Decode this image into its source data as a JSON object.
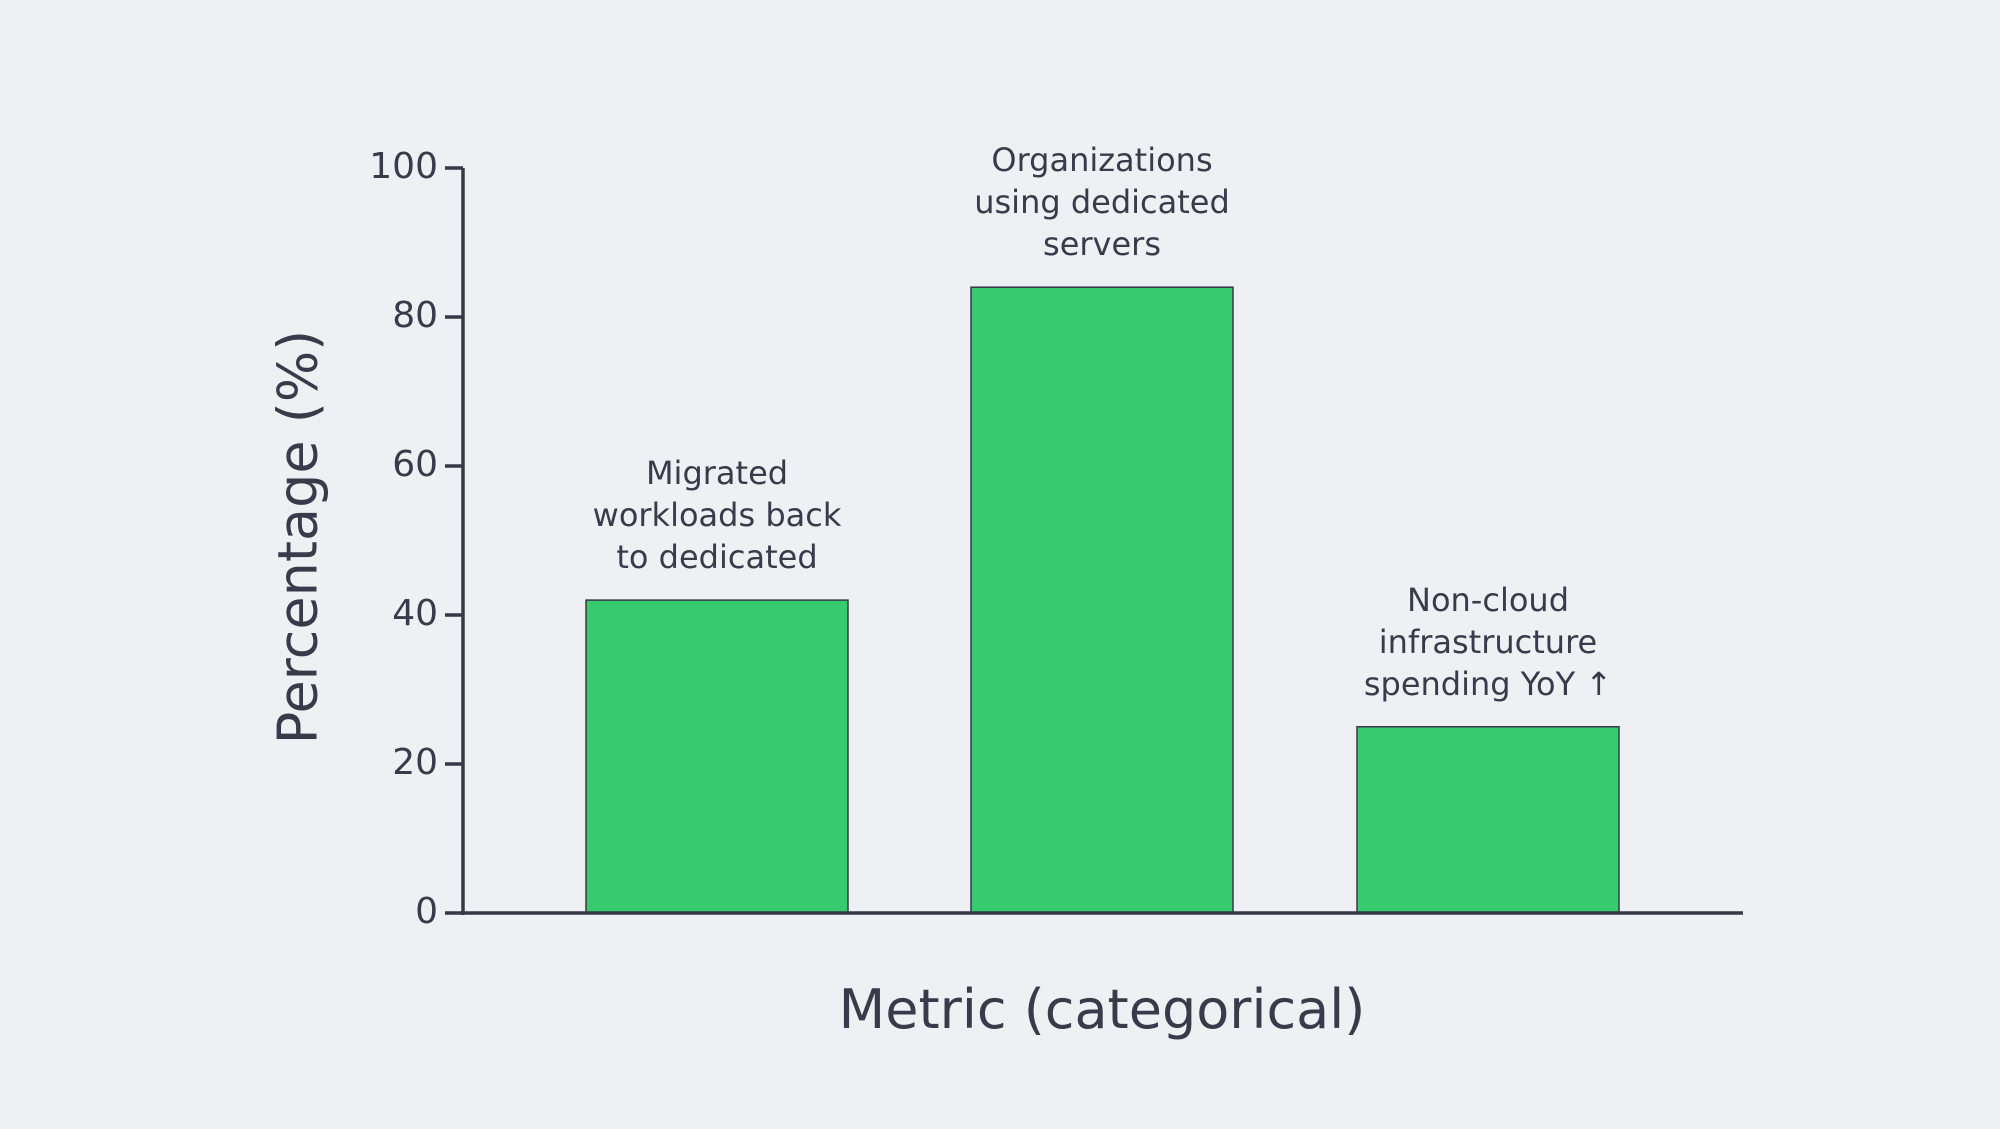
{
  "chart_data": {
    "type": "bar",
    "title": "",
    "xlabel": "Metric (categorical)",
    "ylabel": "Percentage (%)",
    "ylim": [
      0,
      100
    ],
    "yticks": [
      0,
      20,
      40,
      60,
      80,
      100
    ],
    "grid": false,
    "legend": null,
    "categories": [
      "Migrated workloads back to dedicated",
      "Organizations using dedicated servers",
      "Non-cloud infrastructure spending YoY ↑"
    ],
    "values": [
      42,
      84,
      25
    ],
    "annotations": [
      [
        "Migrated",
        "workloads back",
        "to dedicated"
      ],
      [
        "Organizations",
        "using dedicated",
        "servers"
      ],
      [
        "Non-cloud",
        "infrastructure",
        "spending YoY ↑"
      ]
    ],
    "colors": {
      "bar": "#37cb70",
      "bar_edge": "#363846",
      "axis": "#363846",
      "text": "#3a3b4a",
      "background": "#eff0f4"
    }
  }
}
